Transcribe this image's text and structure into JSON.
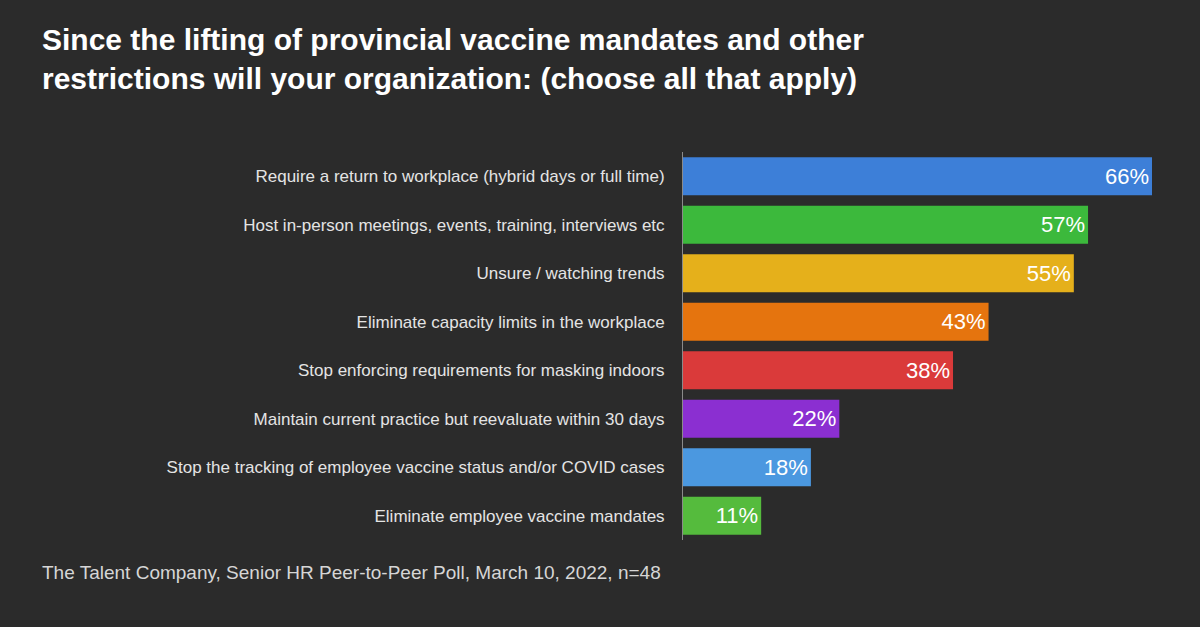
{
  "chart_data": {
    "type": "bar",
    "orientation": "horizontal",
    "title": "Since the lifting of provincial vaccine mandates and other restrictions will your organization: (choose all that apply)",
    "categories": [
      "Require a return to workplace (hybrid days or full time)",
      "Host in-person meetings, events, training, interviews etc",
      "Unsure / watching trends",
      "Eliminate capacity limits in the workplace",
      "Stop enforcing requirements for masking indoors",
      "Maintain current practice but reevaluate within 30 days",
      "Stop the tracking of employee vaccine status and/or COVID cases",
      "Eliminate employee vaccine mandates"
    ],
    "values": [
      66,
      57,
      55,
      43,
      38,
      22,
      18,
      11
    ],
    "value_labels": [
      "66%",
      "57%",
      "55%",
      "43%",
      "38%",
      "22%",
      "18%",
      "11%"
    ],
    "colors": [
      "#3d7fd8",
      "#3cb93c",
      "#e5b01b",
      "#e5740e",
      "#da3a3a",
      "#8b2fd1",
      "#4b98e0",
      "#55bb3d"
    ],
    "xlim": [
      0,
      66
    ],
    "grid": false,
    "data_labels": true,
    "tick_labels": "y",
    "annotations": [
      "The Talent Company, Senior HR Peer-to-Peer Poll, March 10, 2022, n=48"
    ]
  }
}
